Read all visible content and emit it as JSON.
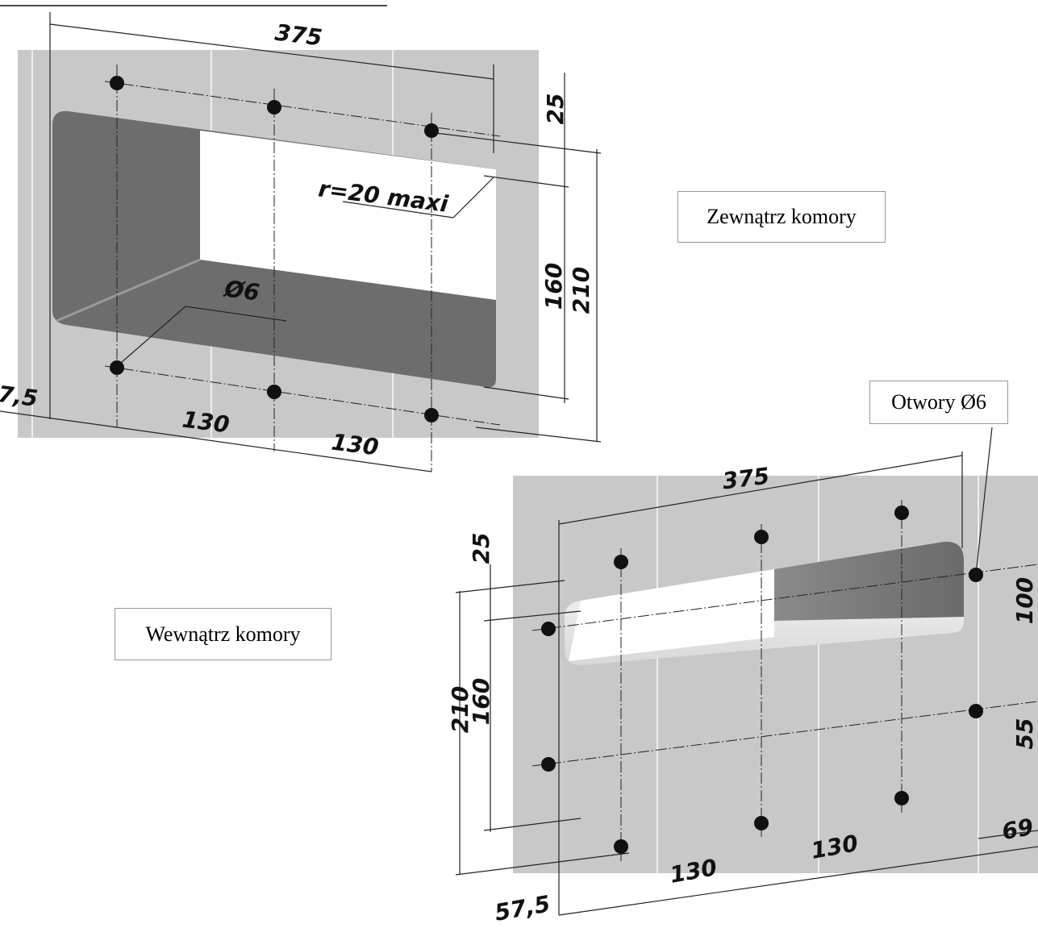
{
  "outside": {
    "label": "Zewnątrz komory",
    "dimensions": [
      "375",
      "25",
      "r=20 maxi",
      "Ø6",
      "160",
      "210",
      "7,5",
      "130",
      "130"
    ]
  },
  "inside": {
    "label": "Wewnątrz komory",
    "note": "Otwory Ø6",
    "dimensions": [
      "375",
      "25",
      "210",
      "160",
      "100",
      "55",
      "69",
      "130",
      "130",
      "57,5"
    ]
  }
}
